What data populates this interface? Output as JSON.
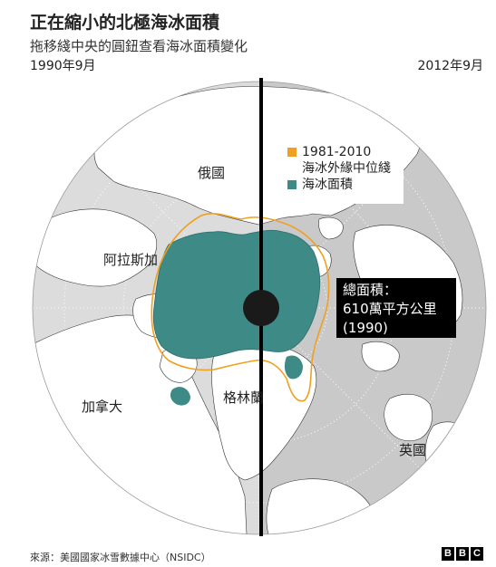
{
  "title": "正在縮小的北極海冰面積",
  "subtitle": "拖移綫中央的圓鈕查看海冰面積變化",
  "year_left": "1990年9月",
  "year_right": "2012年9月",
  "legend": {
    "median_range": "1981-2010",
    "median_label": "海冰外緣中位綫",
    "ice_label": "海冰面積",
    "median_color": "#f0a020",
    "ice_color": "#3e8a87"
  },
  "callout": {
    "line1": "總面積：",
    "line2": "610萬平方公里",
    "line3": "(1990)"
  },
  "map_labels": {
    "russia": "俄國",
    "alaska": "阿拉斯加",
    "canada": "加拿大",
    "greenland": "格林蘭",
    "uk": "英國"
  },
  "colors": {
    "ocean_left": "#dcdcdc",
    "ocean_right": "#c9c9c9",
    "land": "#ffffff",
    "divider": "#000000"
  },
  "footer": "來源：美國國家冰雪數據中心（NSIDC）",
  "logo": [
    "B",
    "B",
    "C"
  ]
}
